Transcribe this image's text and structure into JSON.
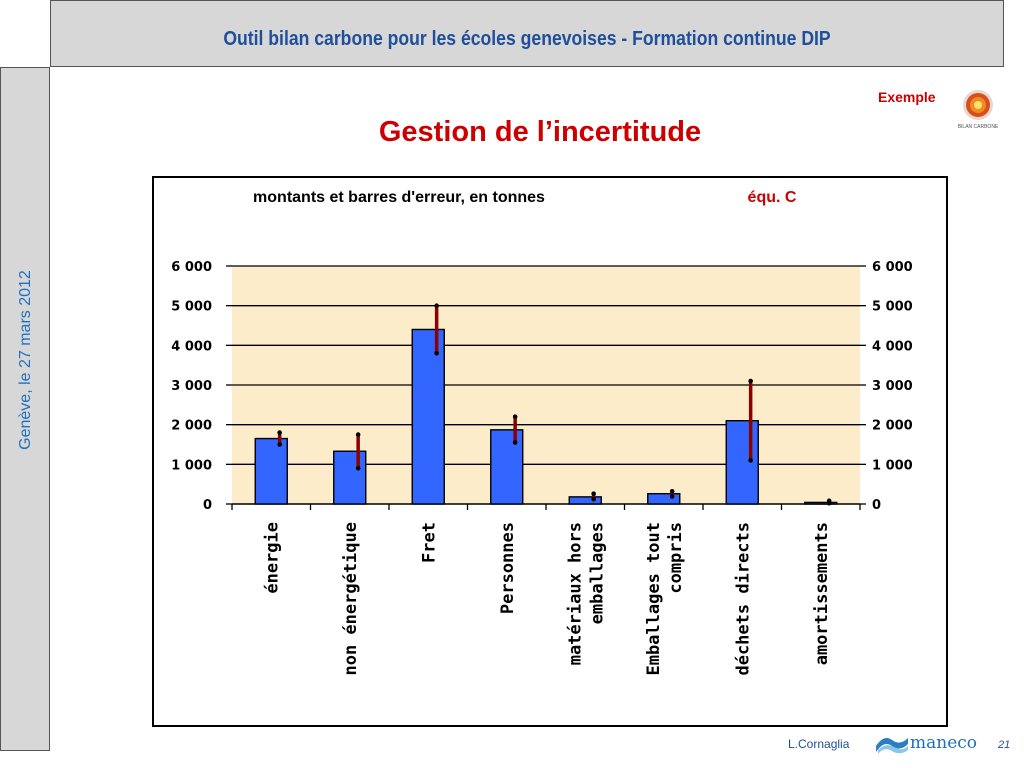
{
  "header": {
    "title": "Outil bilan carbone pour les écoles genevoises -  Formation continue DIP"
  },
  "sidebar": {
    "date_text": "Genève, le 27 mars 2012"
  },
  "badge": {
    "label": "Exemple",
    "logo_text": "BILAN CARBONE"
  },
  "slide": {
    "title": "Gestion de l’incertitude"
  },
  "footer": {
    "author": "L.Cornaglia",
    "brand": "maneco",
    "page_number": "21"
  },
  "colors": {
    "accent": "#cc0000",
    "header_text": "#1f4e9a",
    "bar_fill": "#3366ff",
    "error_bar": "#8b0000",
    "plot_bg": "#fcecc9"
  },
  "chart_data": {
    "type": "bar",
    "title": "montants et barres d'erreur, en tonnes",
    "annotation": "équ. C",
    "categories": [
      "énergie",
      "non énergétique",
      "Fret",
      "Personnes",
      "matériaux hors emballages",
      "Emballages tout compris",
      "déchets directs",
      "amortissements"
    ],
    "category_lines": [
      [
        "énergie"
      ],
      [
        "non énergétique"
      ],
      [
        "Fret"
      ],
      [
        "Personnes"
      ],
      [
        "matériaux hors",
        "emballages"
      ],
      [
        "Emballages tout",
        "compris"
      ],
      [
        "déchets directs"
      ],
      [
        "amortissements"
      ]
    ],
    "values": [
      1650,
      1330,
      4400,
      1870,
      180,
      260,
      2100,
      40
    ],
    "error_low": [
      1500,
      900,
      3800,
      1550,
      120,
      190,
      1100,
      20
    ],
    "error_high": [
      1800,
      1750,
      5000,
      2200,
      260,
      320,
      3100,
      80
    ],
    "ylim": [
      0,
      6000
    ],
    "yticks": [
      0,
      1000,
      2000,
      3000,
      4000,
      5000,
      6000
    ],
    "ytick_labels": [
      "0",
      "1 000",
      "2 000",
      "3 000",
      "4 000",
      "5 000",
      "6 000"
    ],
    "grid": true
  }
}
